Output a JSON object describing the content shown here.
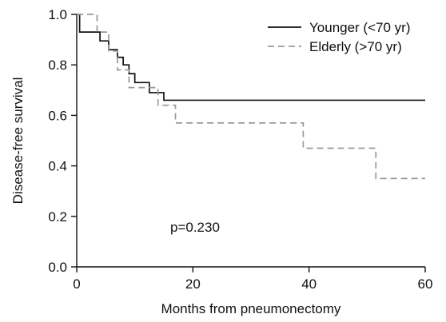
{
  "chart_data": {
    "type": "line",
    "title": "",
    "xlabel": "Months from pneumonectomy",
    "ylabel": "Disease-free survival",
    "xlim": [
      0,
      60
    ],
    "ylim": [
      0.0,
      1.0
    ],
    "x_ticks": [
      0,
      20,
      40,
      60
    ],
    "x_tick_labels": [
      "0",
      "20",
      "40",
      "60"
    ],
    "y_ticks": [
      0.0,
      0.2,
      0.4,
      0.6,
      0.8,
      1.0
    ],
    "y_tick_labels": [
      "0.0",
      "0.2",
      "0.4",
      "0.6",
      "0.8",
      "1.0"
    ],
    "grid": false,
    "legend_position": "top-right",
    "annotation": "p=0.230",
    "series": [
      {
        "name": "Younger (<70 yr)",
        "style": "solid",
        "color": "#111111",
        "x": [
          0,
          0.5,
          4,
          5.5,
          7,
          8,
          9,
          10,
          11,
          12.5,
          14,
          15,
          16.5,
          60
        ],
        "y": [
          1.0,
          0.93,
          0.895,
          0.86,
          0.83,
          0.8,
          0.765,
          0.73,
          0.73,
          0.69,
          0.69,
          0.66,
          0.66,
          0.66
        ]
      },
      {
        "name": "Elderly (>70 yr)",
        "style": "dashed",
        "color": "#9a9a9a",
        "x": [
          0,
          3.5,
          5.5,
          7,
          9,
          11,
          14,
          17,
          22,
          39,
          45,
          51.5,
          60
        ],
        "y": [
          1.0,
          0.93,
          0.855,
          0.78,
          0.71,
          0.71,
          0.64,
          0.57,
          0.57,
          0.47,
          0.47,
          0.35,
          0.35
        ]
      }
    ]
  }
}
